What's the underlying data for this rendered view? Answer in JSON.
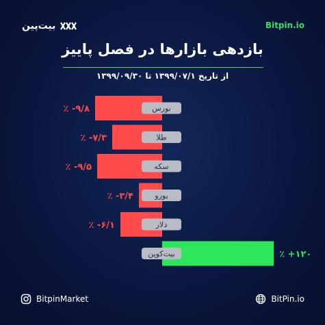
{
  "header": {
    "brand": "بیت‌پین",
    "site": "Bitpin.io",
    "title": "بازدهی بازارها در فصل پاییز",
    "subtitle": "از تاریخ ۱۳۹۹/۰۷/۱ تا ۱۳۹۹/۰۹/۳۰"
  },
  "chart_data": {
    "type": "bar",
    "orientation": "horizontal",
    "categories": [
      "بورس",
      "طلا",
      "سکه",
      "یورو",
      "دلار",
      "بیت‌کوین"
    ],
    "values": [
      -9.8,
      -7.3,
      -9.5,
      -3.4,
      -6.1,
      120
    ],
    "value_labels": [
      "٪ -۹/۸",
      "٪ -۷/۳",
      "٪ -۹/۵",
      "٪ -۳/۴",
      "٪ -۶/۱",
      "٪ +۱۲۰"
    ],
    "colors": {
      "negative": "#ff4b4b",
      "positive": "#2ee65a",
      "label_bg": "#b9bcc4"
    }
  },
  "footer": {
    "instagram": "BitpinMarket",
    "website": "BitPin.io",
    "instagram_icon": "instagram-icon",
    "globe_icon": "globe-icon"
  }
}
